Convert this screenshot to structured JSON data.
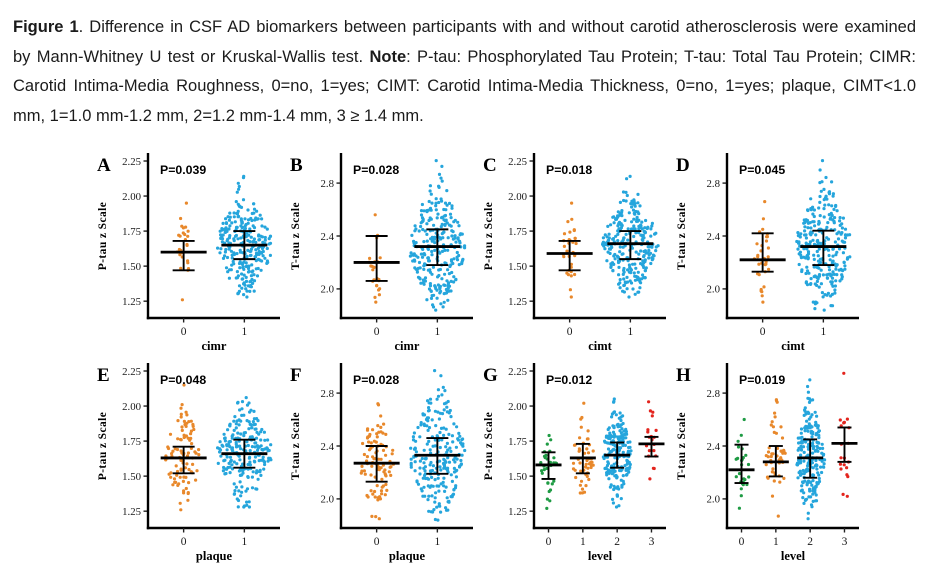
{
  "caption": {
    "figure_label": "Figure 1",
    "text_1": ". Difference in CSF AD biomarkers between participants with and without carotid atherosclerosis were examined by Mann-Whitney U test or Kruskal-Wallis test. ",
    "note_label": "Note",
    "text_2": ": P-tau: Phosphorylated Tau Protein; T-tau: Total Tau Protein; CIMR: Carotid Intima-Media Roughness, 0=no, 1=yes; CIMT: Carotid Intima-Media Thickness, 0=no, 1=yes; plaque, CIMT<1.0 mm, 1=1.0 mm-1.2 mm, 2=1.2 mm-1.4 mm, 3 ≥ 1.4 mm."
  },
  "chart_data": {
    "type": "scatter",
    "subtype": "jittered strip plots (beeswarm) with mean and 95% CI error bars",
    "grid": "2 rows x 4 columns, panels A-H",
    "gridlines": false,
    "legend": "none",
    "colors": {
      "group_orange": "#E8882B",
      "group_blue": "#25A5DC",
      "group_green": "#1F9B44",
      "group_red": "#E3241D",
      "errorbar": "#000000",
      "axis": "#000000"
    },
    "panels": [
      {
        "letter": "A",
        "p_label": "P=0.039",
        "ylabel": "P-tau z Scale",
        "xlabel": "cimr",
        "ylim": [
          1.13,
          2.3
        ],
        "ytick_values": [
          1.25,
          1.5,
          1.75,
          2.0,
          2.25
        ],
        "ytick_labels": [
          "1.25",
          "1.50",
          "1.75",
          "2.00",
          "2.25"
        ],
        "groups": [
          {
            "category": "0",
            "color": "#E8882B",
            "n": 24,
            "points_min": 1.26,
            "points_max": 1.95,
            "mean": 1.6,
            "ci_low": 1.47,
            "ci_high": 1.68
          },
          {
            "category": "1",
            "color": "#25A5DC",
            "n": 270,
            "points_min": 1.28,
            "points_max": 2.14,
            "mean": 1.65,
            "ci_low": 1.55,
            "ci_high": 1.75
          }
        ]
      },
      {
        "letter": "B",
        "p_label": "P=0.028",
        "ylabel": "T-tau z Scale",
        "xlabel": "cimr",
        "ylim": [
          1.78,
          3.02
        ],
        "ytick_values": [
          2.0,
          2.4,
          2.8
        ],
        "ytick_labels": [
          "2.0",
          "2.4",
          "2.8"
        ],
        "groups": [
          {
            "category": "0",
            "color": "#E8882B",
            "n": 24,
            "points_min": 1.9,
            "points_max": 2.56,
            "mean": 2.2,
            "ci_low": 2.06,
            "ci_high": 2.4
          },
          {
            "category": "1",
            "color": "#25A5DC",
            "n": 270,
            "points_min": 1.84,
            "points_max": 2.97,
            "mean": 2.32,
            "ci_low": 2.18,
            "ci_high": 2.45
          }
        ]
      },
      {
        "letter": "C",
        "p_label": "P=0.018",
        "ylabel": "P-tau z Scale",
        "xlabel": "cimt",
        "ylim": [
          1.13,
          2.3
        ],
        "ytick_values": [
          1.25,
          1.5,
          1.75,
          2.0,
          2.25
        ],
        "ytick_labels": [
          "1.25",
          "1.50",
          "1.75",
          "2.00",
          "2.25"
        ],
        "groups": [
          {
            "category": "0",
            "color": "#E8882B",
            "n": 30,
            "points_min": 1.28,
            "points_max": 1.95,
            "mean": 1.59,
            "ci_low": 1.47,
            "ci_high": 1.68
          },
          {
            "category": "1",
            "color": "#25A5DC",
            "n": 270,
            "points_min": 1.28,
            "points_max": 2.14,
            "mean": 1.66,
            "ci_low": 1.55,
            "ci_high": 1.75
          }
        ]
      },
      {
        "letter": "D",
        "p_label": "P=0.045",
        "ylabel": "T-tau z Scale",
        "xlabel": "cimt",
        "ylim": [
          1.78,
          3.02
        ],
        "ytick_values": [
          2.0,
          2.4,
          2.8
        ],
        "ytick_labels": [
          "2.0",
          "2.4",
          "2.8"
        ],
        "groups": [
          {
            "category": "0",
            "color": "#E8882B",
            "n": 30,
            "points_min": 1.9,
            "points_max": 2.66,
            "mean": 2.22,
            "ci_low": 2.13,
            "ci_high": 2.42
          },
          {
            "category": "1",
            "color": "#25A5DC",
            "n": 270,
            "points_min": 1.84,
            "points_max": 2.97,
            "mean": 2.32,
            "ci_low": 2.18,
            "ci_high": 2.44
          }
        ]
      },
      {
        "letter": "E",
        "p_label": "P=0.048",
        "ylabel": "P-tau z Scale",
        "xlabel": "plaque",
        "ylim": [
          1.13,
          2.3
        ],
        "ytick_values": [
          1.25,
          1.5,
          1.75,
          2.0,
          2.25
        ],
        "ytick_labels": [
          "1.25",
          "1.50",
          "1.75",
          "2.00",
          "2.25"
        ],
        "groups": [
          {
            "category": "0",
            "color": "#E8882B",
            "n": 95,
            "points_min": 1.26,
            "points_max": 2.15,
            "mean": 1.63,
            "ci_low": 1.52,
            "ci_high": 1.71
          },
          {
            "category": "1",
            "color": "#25A5DC",
            "n": 230,
            "points_min": 1.28,
            "points_max": 2.06,
            "mean": 1.66,
            "ci_low": 1.56,
            "ci_high": 1.76
          }
        ]
      },
      {
        "letter": "F",
        "p_label": "P=0.028",
        "ylabel": "T-tau z Scale",
        "xlabel": "plaque",
        "ylim": [
          1.78,
          3.02
        ],
        "ytick_values": [
          2.0,
          2.4,
          2.8
        ],
        "ytick_labels": [
          "2.0",
          "2.4",
          "2.8"
        ],
        "groups": [
          {
            "category": "0",
            "color": "#E8882B",
            "n": 95,
            "points_min": 1.85,
            "points_max": 2.72,
            "mean": 2.27,
            "ci_low": 2.13,
            "ci_high": 2.4
          },
          {
            "category": "1",
            "color": "#25A5DC",
            "n": 230,
            "points_min": 1.84,
            "points_max": 2.97,
            "mean": 2.33,
            "ci_low": 2.19,
            "ci_high": 2.46
          }
        ]
      },
      {
        "letter": "G",
        "p_label": "P=0.012",
        "ylabel": "P-tau z Scale",
        "xlabel": "level",
        "ylim": [
          1.13,
          2.3
        ],
        "ytick_values": [
          1.25,
          1.5,
          1.75,
          2.0,
          2.25
        ],
        "ytick_labels": [
          "1.25",
          "1.50",
          "1.75",
          "2.00",
          "2.25"
        ],
        "groups": [
          {
            "category": "0",
            "color": "#1F9B44",
            "n": 28,
            "points_min": 1.27,
            "points_max": 1.79,
            "mean": 1.58,
            "ci_low": 1.48,
            "ci_high": 1.67
          },
          {
            "category": "1",
            "color": "#E8882B",
            "n": 48,
            "points_min": 1.38,
            "points_max": 2.02,
            "mean": 1.63,
            "ci_low": 1.52,
            "ci_high": 1.73
          },
          {
            "category": "2",
            "color": "#25A5DC",
            "n": 200,
            "points_min": 1.28,
            "points_max": 2.05,
            "mean": 1.65,
            "ci_low": 1.56,
            "ci_high": 1.74
          },
          {
            "category": "3",
            "color": "#E3241D",
            "n": 18,
            "points_min": 1.48,
            "points_max": 2.03,
            "mean": 1.73,
            "ci_low": 1.64,
            "ci_high": 1.78
          }
        ]
      },
      {
        "letter": "H",
        "p_label": "P=0.019",
        "ylabel": "T-tau z Scale",
        "xlabel": "level",
        "ylim": [
          1.78,
          3.02
        ],
        "ytick_values": [
          2.0,
          2.4,
          2.8
        ],
        "ytick_labels": [
          "2.0",
          "2.4",
          "2.8"
        ],
        "groups": [
          {
            "category": "0",
            "color": "#1F9B44",
            "n": 24,
            "points_min": 1.93,
            "points_max": 2.6,
            "mean": 2.22,
            "ci_low": 2.12,
            "ci_high": 2.41
          },
          {
            "category": "1",
            "color": "#E8882B",
            "n": 45,
            "points_min": 1.87,
            "points_max": 2.75,
            "mean": 2.28,
            "ci_low": 2.17,
            "ci_high": 2.4
          },
          {
            "category": "2",
            "color": "#25A5DC",
            "n": 200,
            "points_min": 1.85,
            "points_max": 2.9,
            "mean": 2.31,
            "ci_low": 2.16,
            "ci_high": 2.45
          },
          {
            "category": "3",
            "color": "#E3241D",
            "n": 18,
            "points_min": 2.02,
            "points_max": 2.95,
            "mean": 2.42,
            "ci_low": 2.28,
            "ci_high": 2.54
          }
        ]
      }
    ]
  }
}
